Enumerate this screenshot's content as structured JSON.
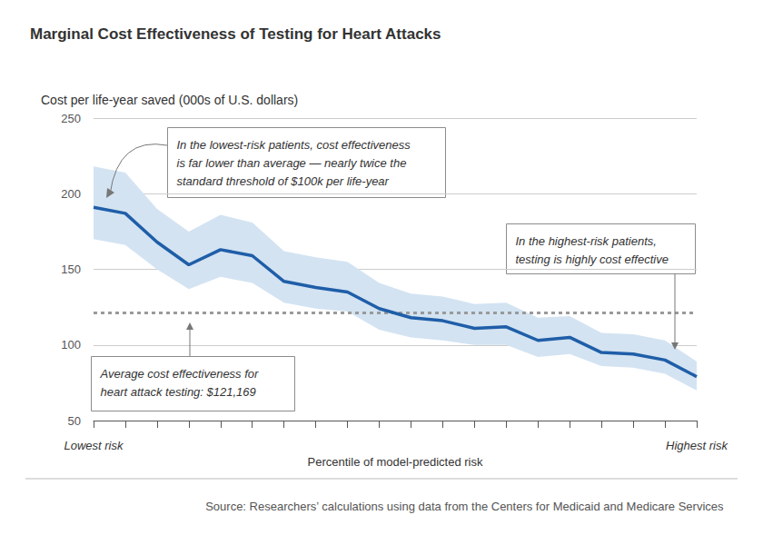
{
  "chart_data": {
    "type": "line",
    "title": "Marginal Cost Effectiveness of Testing for Heart Attacks",
    "y_label": "Cost per life-year saved (000s of U.S. dollars)",
    "x_label": "Percentile of model-predicted risk",
    "categories": [
      "Lowest risk",
      null,
      null,
      null,
      null,
      null,
      null,
      null,
      null,
      null,
      null,
      null,
      null,
      null,
      null,
      null,
      null,
      null,
      null,
      "Highest risk"
    ],
    "values": [
      191,
      187,
      168,
      153,
      163,
      159,
      142,
      138,
      135,
      124,
      118,
      116,
      111,
      112,
      103,
      105,
      95,
      94,
      90,
      79
    ],
    "color": "#1f5ea8",
    "band": {
      "lower": [
        170,
        166,
        150,
        137,
        145,
        141,
        128,
        124,
        122,
        110,
        105,
        103,
        100,
        100,
        92,
        94,
        86,
        85,
        81,
        70
      ],
      "upper": [
        218,
        214,
        190,
        175,
        186,
        181,
        162,
        158,
        155,
        141,
        134,
        132,
        127,
        128,
        118,
        119,
        108,
        107,
        103,
        89
      ],
      "color": "#d3e3f2"
    },
    "ylim": [
      50,
      250
    ],
    "yticks": [
      50,
      100,
      150,
      200,
      250
    ],
    "grid": true,
    "reference_line": {
      "value": 121.169,
      "line_style": "dotted",
      "color": "#9a9a9a"
    },
    "annotations": [
      {
        "lines": [
          "In the lowest-risk patients, cost effectiveness",
          "is far lower than average — nearly twice the",
          "standard threshold of $100k per life-year"
        ]
      },
      {
        "lines": [
          "In the highest-risk patients,",
          "testing is highly cost effective"
        ]
      },
      {
        "lines": [
          "Average cost effectiveness for",
          "heart attack testing: $121,169"
        ]
      }
    ],
    "source": "Source: Researchers’ calculations using data from the Centers for Medicaid and Medicare Services"
  }
}
